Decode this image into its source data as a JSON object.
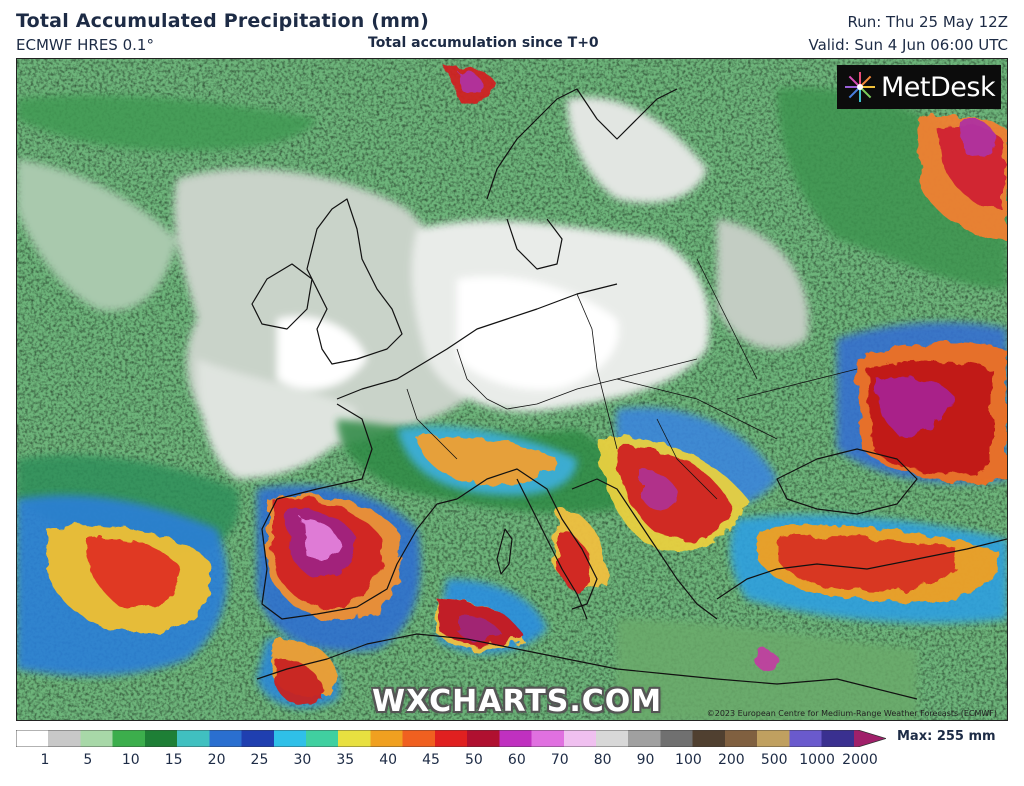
{
  "header": {
    "title": "Total Accumulated Precipitation (mm)",
    "model": "ECMWF HRES 0.1°",
    "subtitle": "Total accumulation since T+0",
    "run": "Run: Thu 25 May 12Z",
    "valid": "Valid: Sun 4 Jun 06:00 UTC"
  },
  "map": {
    "logo_text": "MetDesk",
    "logo_icon": "flower-burst-icon",
    "watermark": "WXCHARTS.COM",
    "copyright": "©2023 European Centre for Medium-Range Weather Forecasts (ECMWF)"
  },
  "legend": {
    "max_label": "Max: 255 mm",
    "ticks": [
      "1",
      "5",
      "10",
      "15",
      "20",
      "25",
      "30",
      "35",
      "40",
      "45",
      "50",
      "60",
      "70",
      "80",
      "90",
      "100",
      "200",
      "500",
      "1000",
      "2000"
    ],
    "colors": [
      "#ffffff",
      "#c8c8c8",
      "#a8d8a8",
      "#3cae4c",
      "#1e7f36",
      "#40c0c0",
      "#2a6fd0",
      "#1f3fb0",
      "#2fc0e8",
      "#40d0a0",
      "#e8e040",
      "#f0a020",
      "#f06020",
      "#e02020",
      "#b01030",
      "#c030c0",
      "#e070e0",
      "#f0c0f0",
      "#d8d8d8",
      "#a0a0a0",
      "#707070",
      "#504030",
      "#806040",
      "#c0a060",
      "#6a5acd",
      "#3a3090",
      "#a0206a"
    ]
  }
}
